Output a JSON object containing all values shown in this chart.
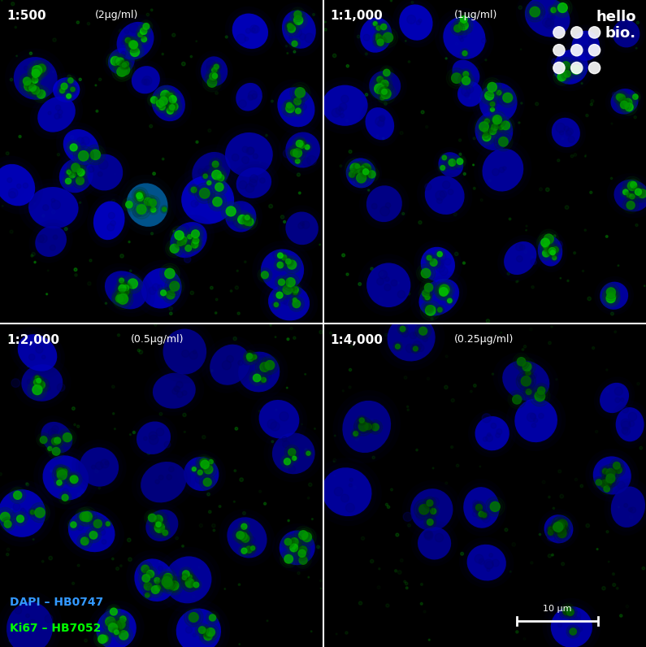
{
  "panels": [
    {
      "label": "1:500",
      "conc": "(2μg/ml)",
      "row": 0,
      "col": 0
    },
    {
      "label": "1:1,000",
      "conc": "(1μg/ml)",
      "row": 0,
      "col": 1
    },
    {
      "label": "1:2,000",
      "conc": "(0.5μg/ml)",
      "row": 1,
      "col": 0
    },
    {
      "label": "1:4,000",
      "conc": "(0.25μg/ml)",
      "row": 1,
      "col": 1
    }
  ],
  "legend_dapi_color": "#3399ff",
  "legend_dapi_text": "DAPI – HB0747",
  "legend_ki67_color": "#00ff00",
  "legend_ki67_text": "Ki67 – HB7052",
  "scalebar_text": "10 μm",
  "bg_color": "#000000",
  "label_bold_color": "#ffffff",
  "label_regular_color": "#cccccc",
  "hellobio_color": "#ffffff",
  "separator_color": "#ffffff",
  "separator_lw": 1.5,
  "fig_width": 7.95,
  "fig_height": 7.96,
  "dpi": 100
}
